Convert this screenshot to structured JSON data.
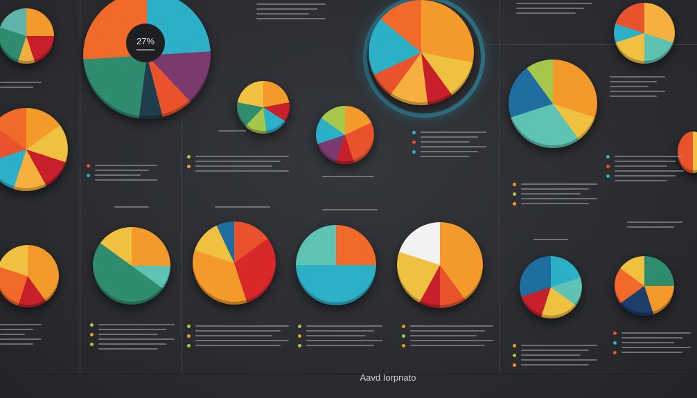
{
  "center_label": "27%",
  "footer": "Aavd Iorpnato"
}
